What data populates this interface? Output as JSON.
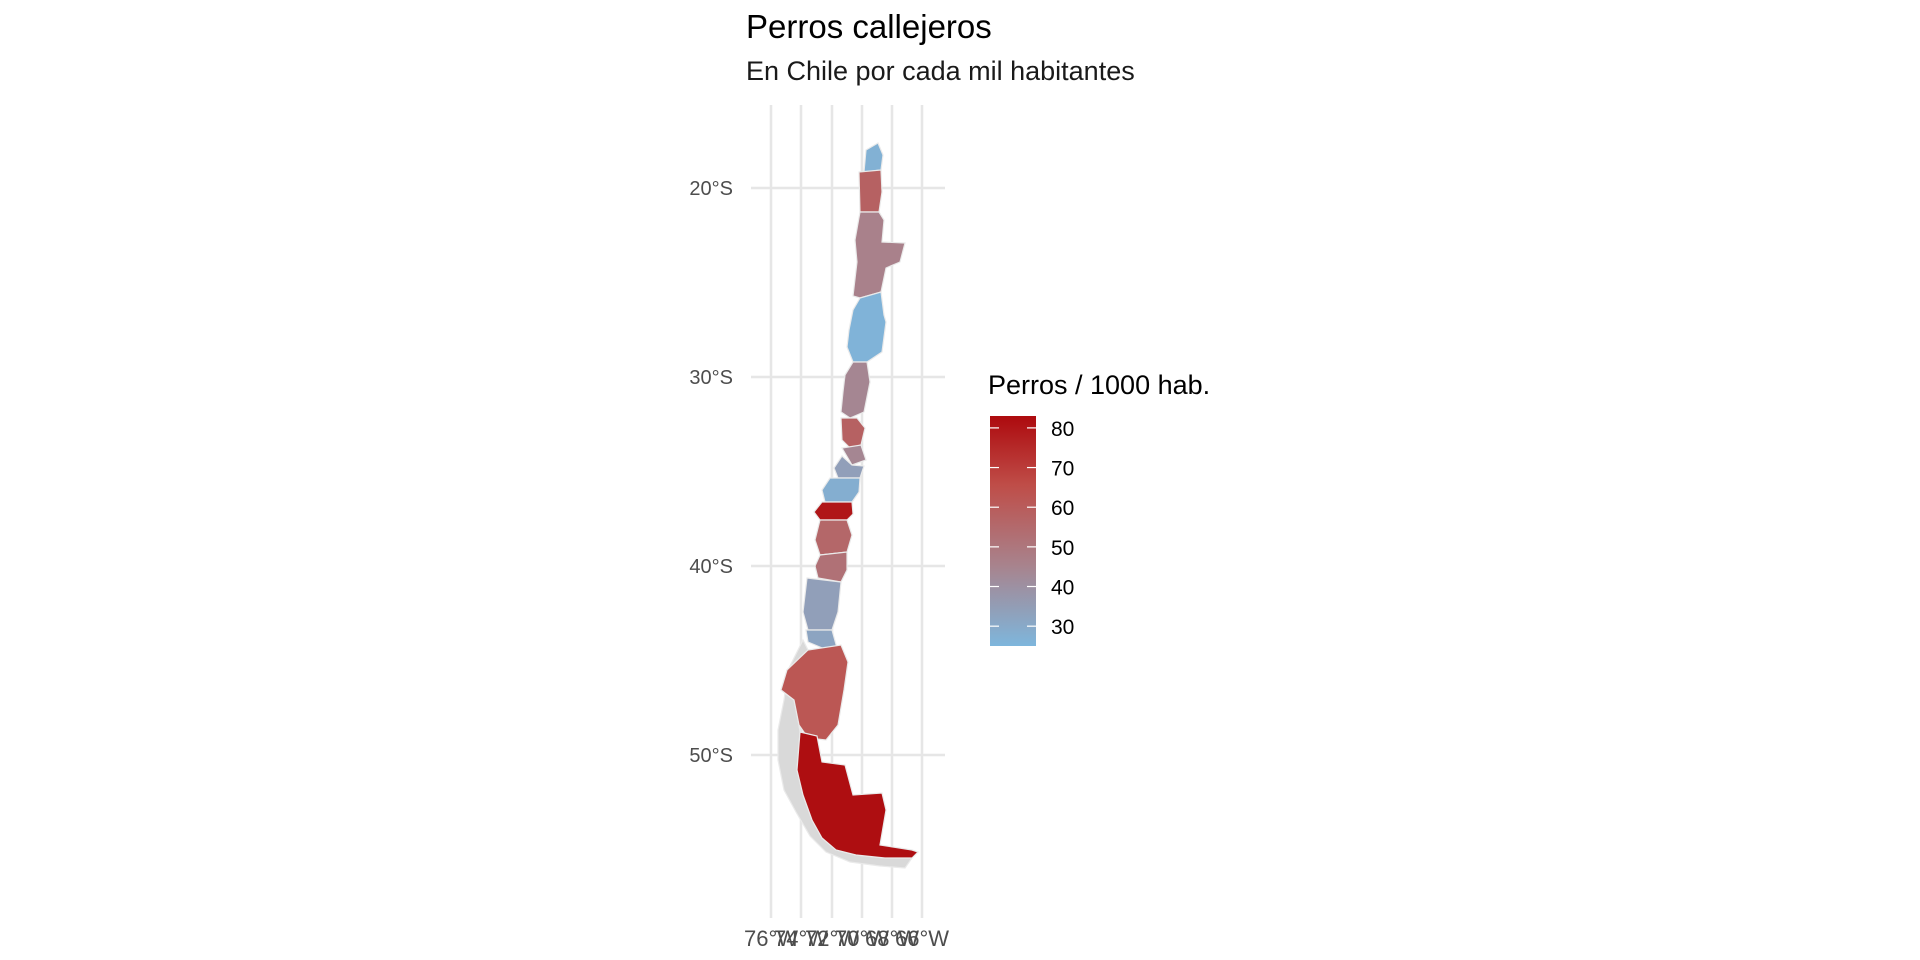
{
  "chart_data": {
    "type": "choropleth",
    "title": "Perros callejeros",
    "subtitle": "En Chile por cada mil habitantes",
    "legend": {
      "title": "Perros / 1000 hab.",
      "placement": "right",
      "ticks": [
        80,
        70,
        60,
        50,
        40,
        30
      ],
      "range": [
        25,
        83
      ],
      "color_low": "#7eb6dc",
      "color_mid": "#a8838d",
      "color_high": "#ad0a0e"
    },
    "lat_ticks": [
      "20°S",
      "30°S",
      "40°S",
      "50°S"
    ],
    "lon_ticks": [
      "76°W",
      "74°W",
      "72°W",
      "70°W",
      "68°W",
      "66°W"
    ],
    "no_data_color": "#d9d9d9",
    "grid": true,
    "regions": [
      {
        "value": 27
      },
      {
        "value": 58
      },
      {
        "value": 46
      },
      {
        "value": 26
      },
      {
        "value": 44
      },
      {
        "value": 58
      },
      {
        "value": 44
      },
      {
        "value": 34
      },
      {
        "value": 28
      },
      {
        "value": 80
      },
      {
        "value": 56
      },
      {
        "value": 52
      },
      {
        "value": 34
      },
      {
        "value": 32
      },
      {
        "value": 62
      },
      {
        "value": 82
      }
    ]
  }
}
